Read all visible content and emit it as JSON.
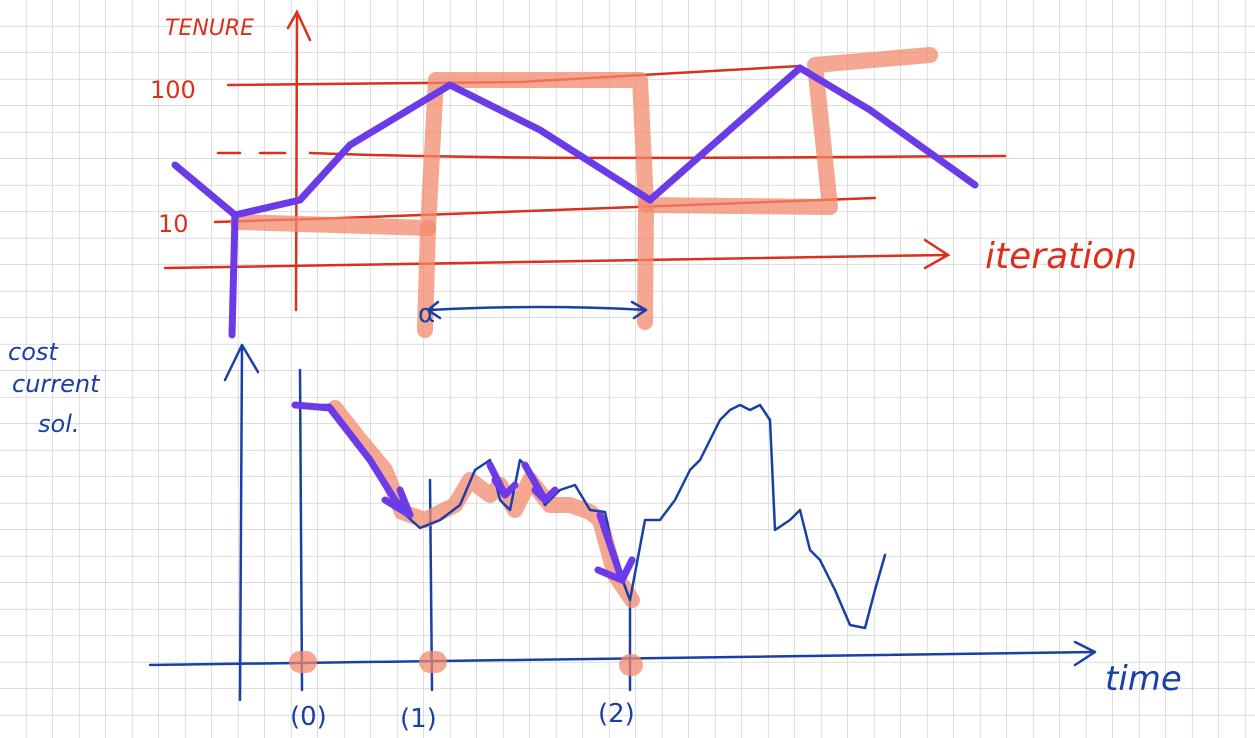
{
  "top_diagram": {
    "y_label": "TENURE",
    "ticks": [
      "100",
      "10"
    ],
    "x_label": "iteration",
    "interval_label": "α"
  },
  "bottom_diagram": {
    "y_label": [
      "cost",
      "current",
      "sol."
    ],
    "x_label": "time",
    "markers": [
      "(0)",
      "(1)",
      "(2)"
    ]
  }
}
